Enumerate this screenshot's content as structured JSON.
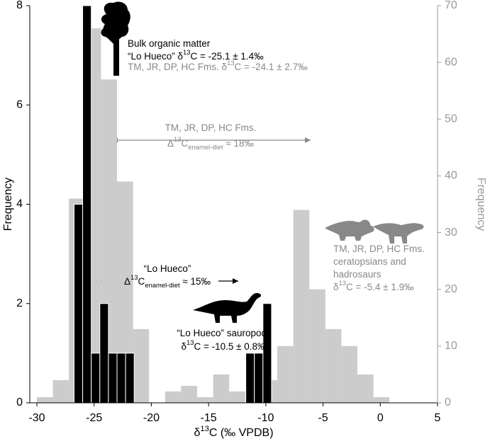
{
  "chart_data": {
    "type": "histogram",
    "xlabel": [
      "δ",
      {
        "text": "13",
        "shift": "super"
      },
      "C (‰ VPDB)"
    ],
    "ylabel": "Frequency",
    "y2label": "Frequency",
    "xlim": [
      -30,
      5
    ],
    "xticks": [
      -30,
      -25,
      -20,
      -15,
      -10,
      -5,
      0,
      5
    ],
    "ylim": [
      0,
      8
    ],
    "yticks": [
      0,
      2,
      4,
      6,
      8
    ],
    "y2lim": [
      0,
      70
    ],
    "y2ticks": [
      0,
      10,
      20,
      30,
      40,
      50,
      60,
      70
    ],
    "y2color": "#999999",
    "series": [
      {
        "color": "#cccccc",
        "axis": "y2",
        "bins": [
          -30,
          -28.6,
          -27.2,
          -25.8,
          -24.4,
          -23,
          -21.6,
          -20.2,
          -18.8,
          -17.4,
          -16,
          -14.6,
          -13.2,
          -11.8,
          -10.4,
          -9,
          -7.6,
          -6.2,
          -4.8,
          -3.4,
          -2,
          -0.6,
          0.8,
          2.2
        ],
        "values": [
          1,
          4,
          36,
          66,
          57,
          39,
          13,
          0,
          2,
          3,
          1,
          5,
          2,
          0,
          4,
          10,
          34,
          20,
          13,
          10,
          5,
          1,
          0
        ]
      },
      {
        "color": "#000000",
        "axis": "y",
        "bins": [
          -26.75,
          -26,
          -25.25,
          -24.5,
          -23.75,
          -23,
          -22.25,
          -21.5,
          -20.75,
          -20,
          -19.25,
          -18.5,
          -17.75,
          -17,
          -16.25,
          -15.5,
          -14.75,
          -14,
          -13.25,
          -12.5,
          -11.75,
          -11,
          -10.25,
          -9.5
        ],
        "values": [
          4,
          8,
          1,
          2,
          1,
          1,
          1,
          0,
          0,
          0,
          0,
          0,
          0,
          0,
          0,
          0,
          0,
          0,
          0,
          0,
          1,
          1,
          2
        ]
      }
    ],
    "annotations": [
      {
        "color": "#000000",
        "lines": [
          [
            "Bulk organic matter"
          ],
          [
            "“Lo Hueco” δ",
            {
              "text": "13",
              "shift": "super"
            },
            "C = -25.1 ± 1.4‰"
          ]
        ]
      },
      {
        "color": "#888888",
        "lines": [
          [
            "TM, JR, DP, HC Fms. δ",
            {
              "text": "13",
              "shift": "super"
            },
            "C = -24.1 ± 2.7‰"
          ]
        ]
      },
      {
        "color": "#888888",
        "lines": [
          [
            "TM, JR, DP, HC Fms."
          ],
          [
            "Δ",
            {
              "text": "13",
              "shift": "super"
            },
            "C",
            {
              "text": "enamel-diet",
              "shift": "sub"
            },
            " ≈ 18‰"
          ]
        ]
      },
      {
        "color": "#000000",
        "lines": [
          [
            "“Lo Hueco”"
          ],
          [
            "Δ",
            {
              "text": "13",
              "shift": "super"
            },
            "C",
            {
              "text": "enamel-diet",
              "shift": "sub"
            },
            " ≈ 15‰"
          ]
        ]
      },
      {
        "color": "#000000",
        "lines": [
          [
            "“Lo Hueco” sauropods"
          ],
          [
            "δ",
            {
              "text": "13",
              "shift": "super"
            },
            "C = -10.5 ± 0.8‰"
          ]
        ]
      },
      {
        "color": "#888888",
        "lines": [
          [
            "TM, JR, DP, HC Fms."
          ],
          [
            "ceratopsians and"
          ],
          [
            "hadrosaurs"
          ],
          [
            "δ",
            {
              "text": "13",
              "shift": "super"
            },
            "C = -5.4 ± 1.9‰"
          ]
        ]
      }
    ]
  }
}
